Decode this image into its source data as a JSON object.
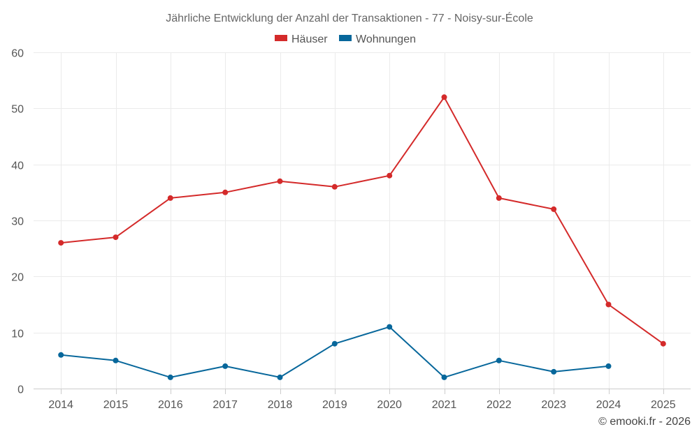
{
  "chart_data": {
    "type": "line",
    "title": "Jährliche Entwicklung der Anzahl der Transaktionen - 77 - Noisy-sur-École",
    "categories": [
      "2014",
      "2015",
      "2016",
      "2017",
      "2018",
      "2019",
      "2020",
      "2021",
      "2022",
      "2023",
      "2024",
      "2025"
    ],
    "series": [
      {
        "name": "Häuser",
        "color": "#d42a2a",
        "values": [
          26,
          27,
          34,
          35,
          37,
          36,
          38,
          52,
          34,
          32,
          15,
          8
        ]
      },
      {
        "name": "Wohnungen",
        "color": "#07679b",
        "values": [
          6,
          5,
          2,
          4,
          2,
          8,
          11,
          2,
          5,
          3,
          4,
          null
        ]
      }
    ],
    "ylim": [
      0,
      60
    ],
    "yticks": [
      0,
      10,
      20,
      30,
      40,
      50,
      60
    ],
    "grid": true,
    "legend_position": "top-center",
    "xlabel": "",
    "ylabel": ""
  },
  "credit": "© emooki.fr - 2026"
}
